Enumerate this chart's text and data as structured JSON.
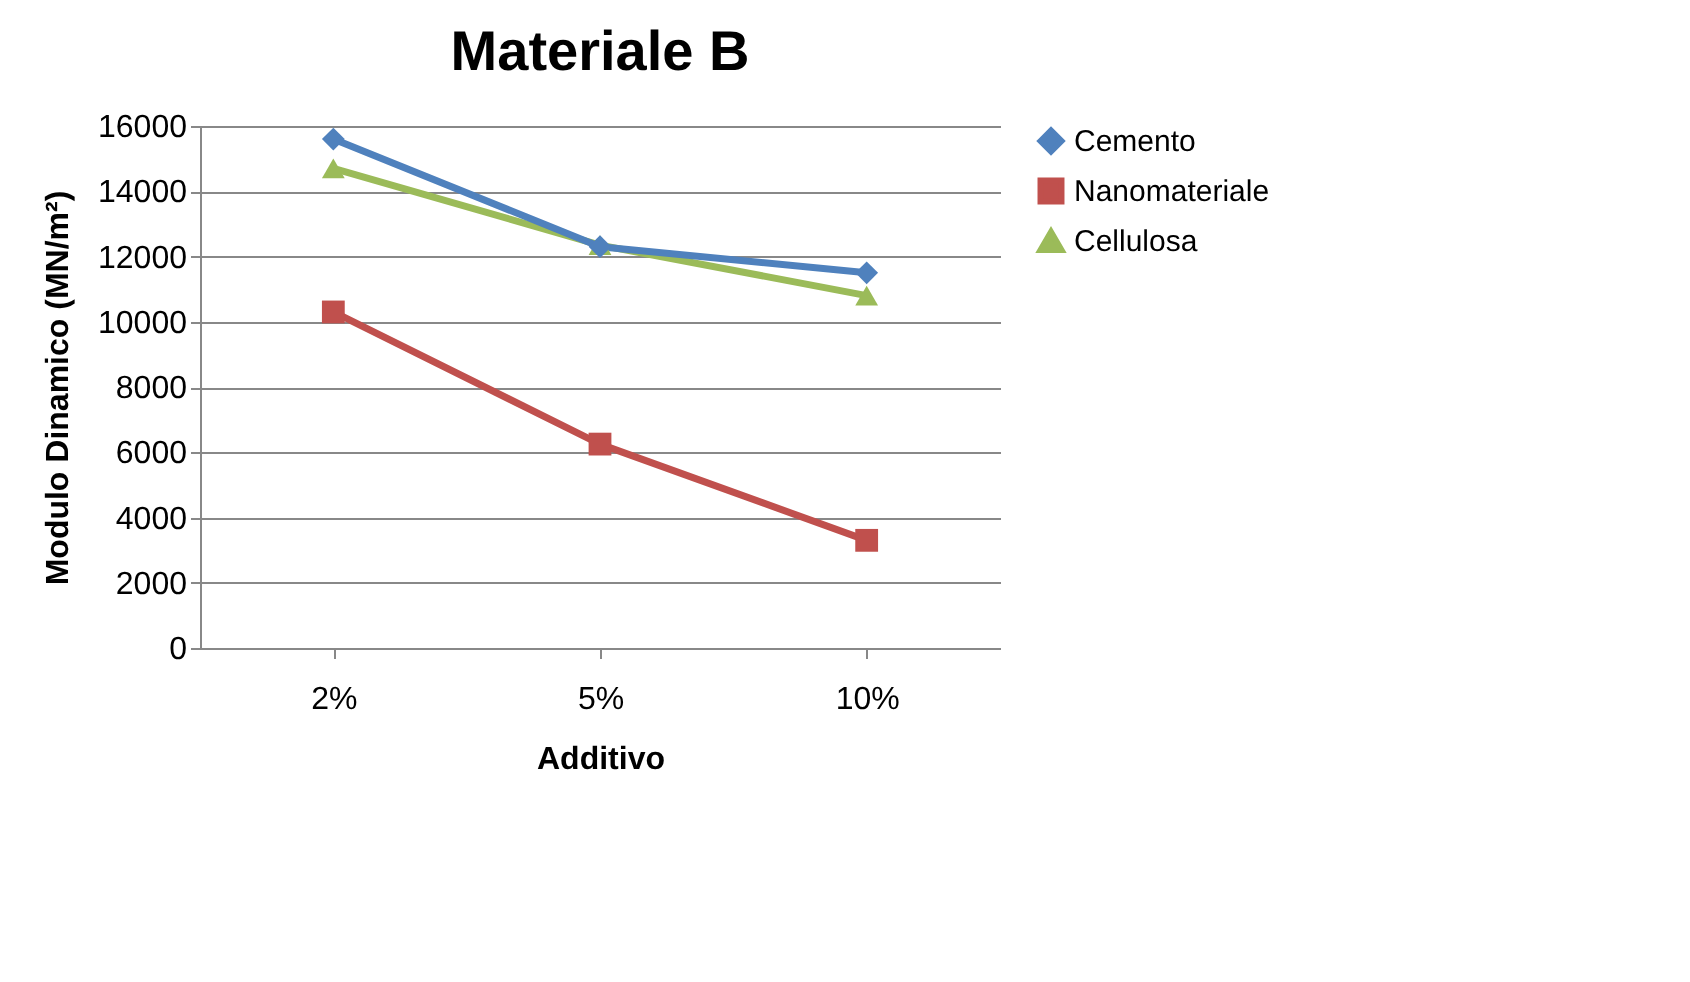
{
  "chart_data": {
    "type": "line",
    "title": "Materiale B",
    "xlabel": "Additivo",
    "ylabel": "Modulo Dinamico (MN/m²)",
    "categories": [
      "2%",
      "5%",
      "10%"
    ],
    "series": [
      {
        "name": "Cemento",
        "color": "#4f81bd",
        "marker": "diamond",
        "values": [
          15600,
          12300,
          11500
        ]
      },
      {
        "name": "Nanomateriale",
        "color": "#c0504d",
        "marker": "square",
        "values": [
          10300,
          6250,
          3300
        ]
      },
      {
        "name": "Cellulosa",
        "color": "#9bbb59",
        "marker": "triangle",
        "values": [
          14700,
          12350,
          10800
        ]
      }
    ],
    "ylim": [
      0,
      16000
    ],
    "yticks": [
      0,
      2000,
      4000,
      6000,
      8000,
      10000,
      12000,
      14000,
      16000
    ],
    "grid": "y",
    "legend": "right",
    "line_style": "solid"
  }
}
